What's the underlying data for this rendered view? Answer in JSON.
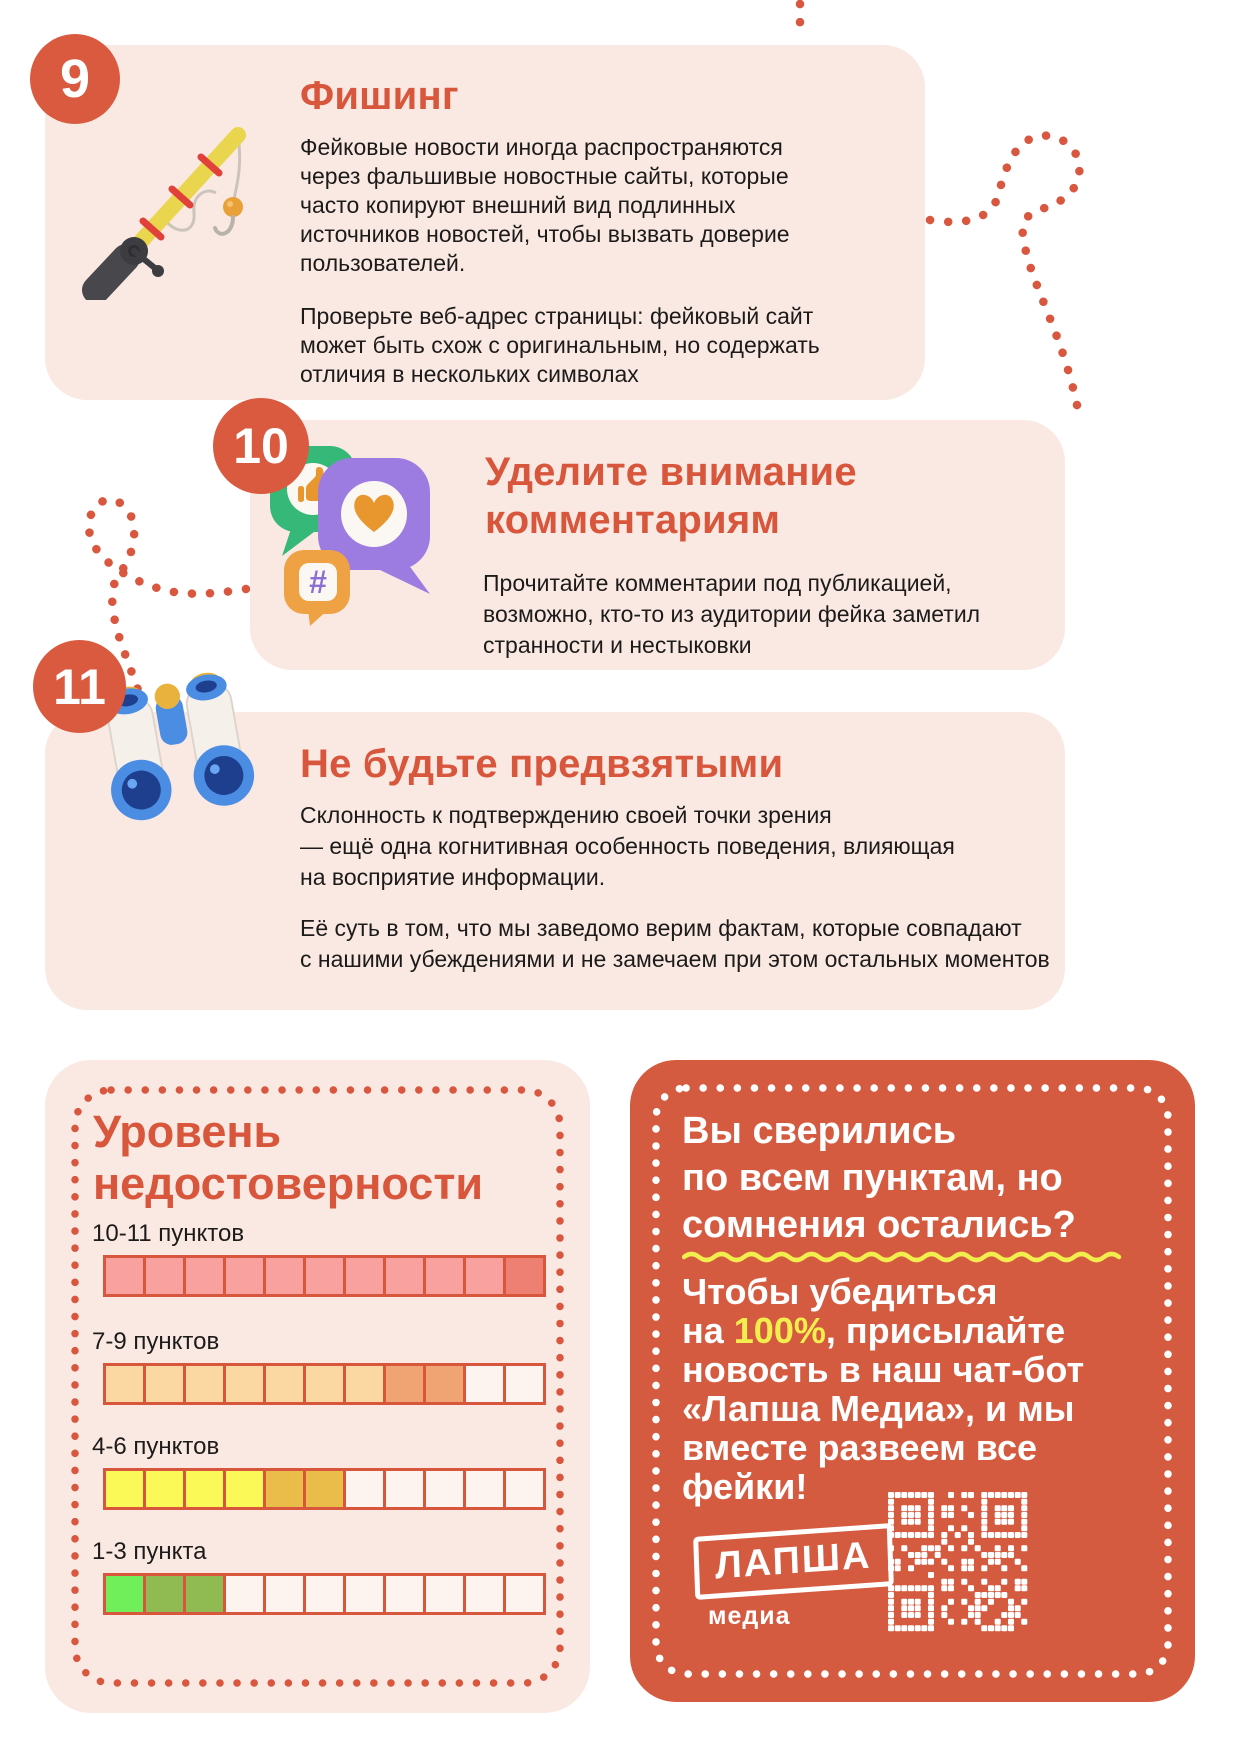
{
  "colors": {
    "accent": "#d8573c",
    "badge": "#da5a40",
    "card_bg": "#fae9e3",
    "cta_bg": "#d55b40",
    "text": "#1d1b1a",
    "highlight_yellow": "#f2ee4e",
    "empty_cell": "#fdf4f0"
  },
  "sections": [
    {
      "number": "9",
      "title": "Фишинг",
      "icon": "fishing-rod",
      "paragraph1": "Фейковые новости иногда распространяются\nчерез фальшивые новостные сайты, которые\nчасто копируют внешний вид подлинных\nисточников новостей, чтобы вызвать доверие\nпользователей.",
      "paragraph2": "Проверьте веб-адрес страницы: фейковый сайт\nможет быть схож с оригинальным, но содержать\nотличия в нескольких символах"
    },
    {
      "number": "10",
      "title": "Уделите внимание\nкомментариям",
      "icon": "reaction-speech-bubbles",
      "paragraph1": "Прочитайте комментарии под публикацией,\nвозможно, кто-то из аудитории фейка заметил\nстранности и нестыковки"
    },
    {
      "number": "11",
      "title": "Не будьте предвзятыми",
      "icon": "binoculars",
      "paragraph1": "Склонность к подтверждению своей точки зрения\n— ещё одна когнитивная особенность поведения, влияющая\nна восприятие информации.",
      "paragraph2": "Её суть в том, что мы заведомо верим фактам, которые совпадают\nс нашими убеждениями и не замечаем при этом остальных моментов"
    }
  ],
  "reliability_scale": {
    "title": "Уровень\nнедостоверности",
    "total_cells": 11,
    "rows": [
      {
        "label": "10-11 пунктов",
        "filled_light": 10,
        "filled_dark": 1,
        "light_color": "#f8a19e",
        "dark_color": "#ee8073"
      },
      {
        "label": "7-9 пунктов",
        "filled_light": 7,
        "filled_dark": 2,
        "light_color": "#fbd7a1",
        "dark_color": "#f0a473"
      },
      {
        "label": "4-6 пунктов",
        "filled_light": 4,
        "filled_dark": 2,
        "light_color": "#fbf957",
        "dark_color": "#eabd4b"
      },
      {
        "label": "1-3 пункта",
        "filled_light": 1,
        "filled_dark": 2,
        "light_color": "#70ef5b",
        "dark_color": "#90ba52"
      }
    ]
  },
  "cta_card": {
    "title": "Вы сверились\nпо всем пунктам, но\nсомнения остались?",
    "body_prefix": "Чтобы убедиться\nна ",
    "body_highlight": "100%",
    "body_suffix": ", присылайте\nновость в наш чат-бот\n«Лапша Медиа», и мы\nвместе развеем все\nфейки!",
    "logo_main": "ЛАПША",
    "logo_sub": "медиа"
  }
}
